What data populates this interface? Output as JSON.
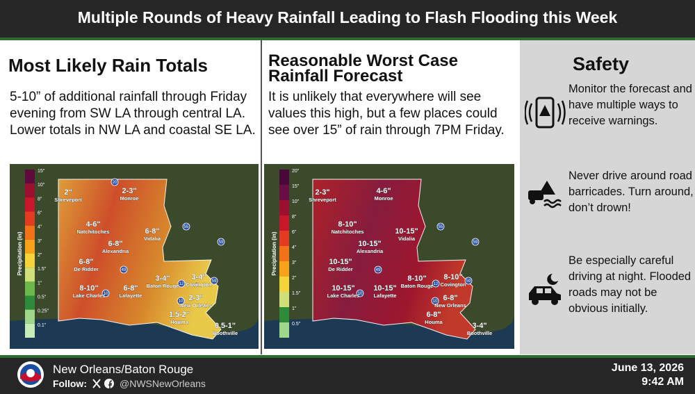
{
  "header": {
    "title": "Multiple Rounds of Heavy Rainfall Leading to Flash Flooding this Week"
  },
  "panels": [
    {
      "title": "Most Likely Rain Totals",
      "text": "5-10” of additional rainfall through Friday evening from SW LA through central LA. Lower totals in NW LA and coastal SE LA.",
      "map": {
        "legend_title": "Precipitation (in)",
        "legend_ticks": [
          "15\"",
          "10\"",
          "8\"",
          "6\"",
          "4\"",
          "3\"",
          "2\"",
          "1.5\"",
          "1\"",
          "0.5\"",
          "0.25\"",
          "0.1\""
        ],
        "labels": [
          {
            "amount": "2\"",
            "city": "Shreveport"
          },
          {
            "amount": "2-3\"",
            "city": "Monroe"
          },
          {
            "amount": "4-6\"",
            "city": "Natchitoches"
          },
          {
            "amount": "6-8\"",
            "city": "Alexandria"
          },
          {
            "amount": "6-8\"",
            "city": "Vidalia"
          },
          {
            "amount": "6-8\"",
            "city": "De Ridder"
          },
          {
            "amount": "8-10\"",
            "city": "Lake Charles"
          },
          {
            "amount": "6-8\"",
            "city": "Lafayette"
          },
          {
            "amount": "3-4\"",
            "city": "Baton Rouge"
          },
          {
            "amount": "3-4\"",
            "city": "Covington"
          },
          {
            "amount": "2-3\"",
            "city": "New Orleans"
          },
          {
            "amount": "1.5-2\"",
            "city": "Houma"
          },
          {
            "amount": "0.5-1\"",
            "city": "Boothville"
          }
        ],
        "shields": [
          "20",
          "55",
          "59",
          "49",
          "10",
          "12",
          "10",
          "59"
        ]
      }
    },
    {
      "title": "Reasonable Worst Case Rainfall Forecast",
      "text": "It is unlikely that everywhere will see values this high, but a few places could see over 15” of rain through 7PM Friday.",
      "map": {
        "legend_title": "Precipitation (in)",
        "legend_ticks": [
          "20\"",
          "15\"",
          "10\"",
          "8\"",
          "6\"",
          "4\"",
          "3\"",
          "2\"",
          "1.5\"",
          "1\"",
          "0.5\""
        ],
        "labels": [
          {
            "amount": "2-3\"",
            "city": "Shreveport"
          },
          {
            "amount": "4-6\"",
            "city": "Monroe"
          },
          {
            "amount": "8-10\"",
            "city": "Natchitoches"
          },
          {
            "amount": "10-15\"",
            "city": "Alexandria"
          },
          {
            "amount": "10-15\"",
            "city": "Vidalia"
          },
          {
            "amount": "10-15\"",
            "city": "De Ridder"
          },
          {
            "amount": "10-15\"",
            "city": "Lake Charles"
          },
          {
            "amount": "10-15\"",
            "city": "Lafayette"
          },
          {
            "amount": "8-10\"",
            "city": "Baton Rouge"
          },
          {
            "amount": "8-10\"",
            "city": "Covington"
          },
          {
            "amount": "6-8\"",
            "city": "New Orleans"
          },
          {
            "amount": "6-8\"",
            "city": "Houma"
          },
          {
            "amount": "3-4\"",
            "city": "Boothville"
          }
        ],
        "shields": [
          "55",
          "59",
          "49",
          "10",
          "12",
          "10",
          "59"
        ]
      }
    }
  ],
  "safety": {
    "title": "Safety",
    "items": [
      "Monitor the forecast and have multiple ways to receive warnings.",
      "Never drive around road barricades. Turn around, don’t drown!",
      "Be especially careful driving at night. Flooded roads may not be obvious initially."
    ]
  },
  "footer": {
    "office": "New Orleans/Baton Rouge",
    "follow": "Follow:",
    "handle": "@NWSNewOrleans",
    "date": "June 13, 2026",
    "time": "9:42 AM"
  }
}
